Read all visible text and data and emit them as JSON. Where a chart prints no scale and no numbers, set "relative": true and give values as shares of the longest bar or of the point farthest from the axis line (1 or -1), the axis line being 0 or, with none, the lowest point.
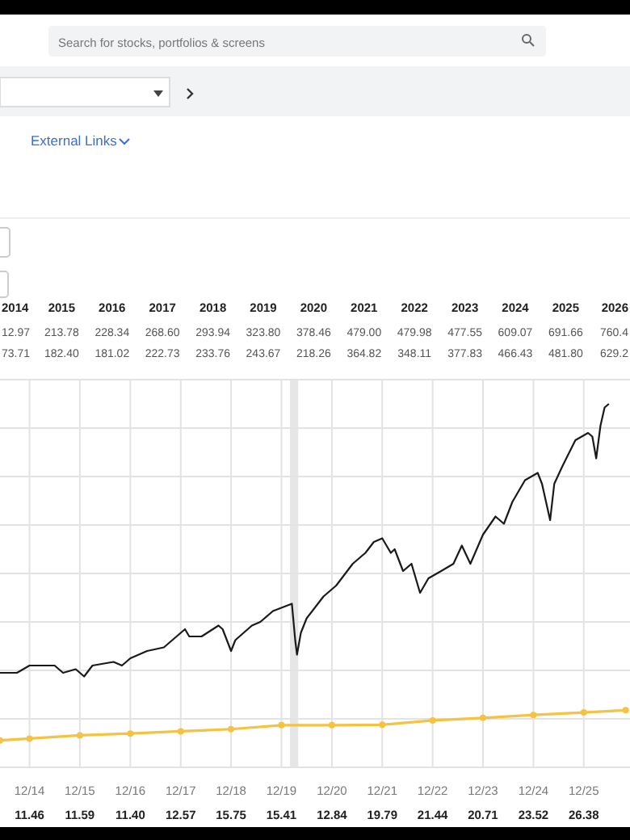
{
  "chart_data": {
    "type": "line",
    "relative": true,
    "grid": true,
    "xlim": [
      "2014-05",
      "2026-11"
    ],
    "xticks": [
      {
        "value": "2014-12",
        "label": "12/14"
      },
      {
        "value": "2015-12",
        "label": "12/15"
      },
      {
        "value": "2016-12",
        "label": "12/16"
      },
      {
        "value": "2017-12",
        "label": "12/17"
      },
      {
        "value": "2018-12",
        "label": "12/18"
      },
      {
        "value": "2019-12",
        "label": "12/19"
      },
      {
        "value": "2020-12",
        "label": "12/20"
      },
      {
        "value": "2021-12",
        "label": "12/21"
      },
      {
        "value": "2022-12",
        "label": "12/22"
      },
      {
        "value": "2023-12",
        "label": "12/23"
      },
      {
        "value": "2024-12",
        "label": "12/24"
      },
      {
        "value": "2025-12",
        "label": "12/25"
      }
    ],
    "bands": [
      {
        "axis": "x",
        "from": "2020-02",
        "to": "2020-04",
        "color": "#e6e6e6"
      }
    ],
    "series": [
      {
        "color": "#1a1a1a",
        "marker": "none",
        "x": [
          "2014-05",
          "2014-09",
          "2014-12",
          "2015-03",
          "2015-06",
          "2015-08",
          "2015-11",
          "2016-01",
          "2016-03",
          "2016-08",
          "2016-10",
          "2016-12",
          "2017-04",
          "2017-08",
          "2017-11",
          "2018-01",
          "2018-02",
          "2018-05",
          "2018-09",
          "2018-10",
          "2018-12",
          "2019-01",
          "2019-05",
          "2019-07",
          "2019-10",
          "2020-02-15",
          "2020-03-10",
          "2020-03-23",
          "2020-04-20",
          "2020-06",
          "2020-10",
          "2021-01",
          "2021-05",
          "2021-08",
          "2021-10",
          "2021-12",
          "2022-02",
          "2022-03",
          "2022-05",
          "2022-07",
          "2022-09",
          "2022-11",
          "2023-02",
          "2023-05",
          "2023-07",
          "2023-09",
          "2023-12",
          "2024-03",
          "2024-05",
          "2024-07",
          "2024-10",
          "2025-01",
          "2025-02",
          "2025-04",
          "2025-05",
          "2025-07",
          "2025-10",
          "2026-01",
          "2026-02",
          "2026-03",
          "2026-04",
          "2026-05",
          "2026-06"
        ],
        "values": [
          0.26,
          0.26,
          0.28,
          0.28,
          0.28,
          0.26,
          0.27,
          0.25,
          0.28,
          0.29,
          0.28,
          0.3,
          0.32,
          0.33,
          0.36,
          0.38,
          0.36,
          0.36,
          0.39,
          0.38,
          0.32,
          0.35,
          0.39,
          0.4,
          0.43,
          0.45,
          0.35,
          0.31,
          0.37,
          0.41,
          0.47,
          0.5,
          0.56,
          0.59,
          0.62,
          0.63,
          0.59,
          0.6,
          0.54,
          0.56,
          0.48,
          0.52,
          0.54,
          0.56,
          0.61,
          0.56,
          0.64,
          0.69,
          0.67,
          0.73,
          0.79,
          0.81,
          0.78,
          0.68,
          0.78,
          0.83,
          0.9,
          0.92,
          0.91,
          0.85,
          0.94,
          0.99,
          1.0
        ]
      },
      {
        "color": "#f5c242",
        "marker": "circle",
        "x": [
          "2014-05",
          "2014-12",
          "2015-12",
          "2016-12",
          "2017-12",
          "2018-12",
          "2019-12",
          "2020-12",
          "2021-12",
          "2022-12",
          "2023-12",
          "2024-12",
          "2025-12",
          "2026-10"
        ],
        "values": [
          0.074,
          0.079,
          0.088,
          0.093,
          0.099,
          0.105,
          0.116,
          0.116,
          0.117,
          0.129,
          0.136,
          0.144,
          0.151,
          0.157
        ]
      }
    ],
    "annotations": [
      "Search for stocks, portfolios & screens",
      "External Links",
      "2014",
      "12.97",
      "73.71",
      "2015",
      "213.78",
      "182.40",
      "2016",
      "228.34",
      "181.02",
      "2017",
      "268.60",
      "222.73",
      "2018",
      "293.94",
      "233.76",
      "2019",
      "323.80",
      "243.67",
      "2020",
      "378.46",
      "218.26",
      "2021",
      "479.00",
      "364.82",
      "2022",
      "479.98",
      "348.11",
      "2023",
      "477.55",
      "377.83",
      "2024",
      "609.07",
      "466.43",
      "2025",
      "691.66",
      "481.80",
      "2026",
      "760.4",
      "629.2",
      "11.46",
      "11.59",
      "11.40",
      "12.57",
      "15.75",
      "15.41",
      "12.84",
      "19.79",
      "21.44",
      "20.71",
      "23.52",
      "26.38"
    ]
  }
}
